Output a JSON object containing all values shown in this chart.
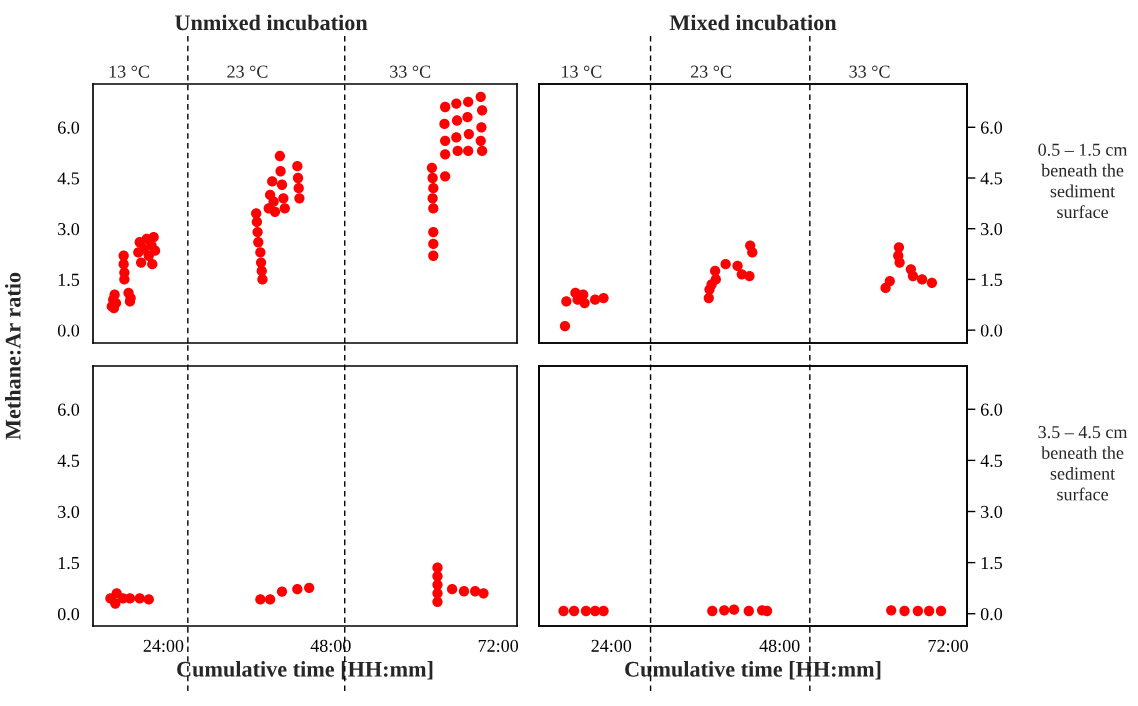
{
  "chart_data": [
    {
      "type": "scatter",
      "title": "Unmixed incubation",
      "ylabel": "Methane:Ar ratio",
      "annotations": [
        "13 °C",
        "23 °C",
        "33 °C"
      ],
      "xlim": [
        13.9,
        74.7
      ],
      "ylim": [
        -0.38,
        7.28
      ],
      "yticks": [
        {
          "value": 0,
          "label": "0.0"
        },
        {
          "value": 1.5,
          "label": "1.5"
        },
        {
          "value": 3,
          "label": "3.0"
        },
        {
          "value": 4.5,
          "label": "4.5"
        },
        {
          "value": 6,
          "label": "6.0"
        }
      ],
      "tick_labels": "y",
      "marker": "circle",
      "ref_lines": [
        {
          "axis": "x",
          "value": 27.5,
          "line_style": "dashed",
          "color": "#000000"
        },
        {
          "axis": "x",
          "value": 50.0,
          "line_style": "dashed",
          "color": "#000000"
        }
      ],
      "series": [
        {
          "color": "#ff0000",
          "x": [
            16.6,
            16.8,
            17.0,
            17.2,
            16.9,
            18.3,
            18.3,
            18.4,
            18.4,
            19.0,
            19.3,
            19.2,
            20.4,
            20.6,
            20.8,
            21.2,
            21.6,
            21.9,
            22.3,
            22.6,
            22.8,
            22.4,
            37.3,
            37.4,
            37.5,
            37.6,
            37.9,
            38.0,
            38.1,
            38.2,
            39.1,
            39.3,
            39.6,
            39.8,
            40.0,
            40.7,
            40.8,
            41.0,
            41.2,
            41.4,
            43.2,
            43.3,
            43.4,
            43.5,
            62.5,
            62.6,
            62.7,
            62.6,
            62.7,
            62.7,
            62.7,
            62.7,
            64.4,
            64.3,
            64.4,
            64.4,
            64.4,
            66.0,
            66.1,
            66.0,
            66.2,
            67.7,
            67.6,
            67.8,
            67.7,
            69.5,
            69.7,
            69.6,
            69.5,
            69.7
          ],
          "values": [
            0.7,
            0.9,
            1.05,
            0.8,
            0.65,
            2.2,
            1.95,
            1.7,
            1.5,
            1.1,
            0.95,
            0.85,
            2.3,
            2.6,
            2.0,
            2.4,
            2.7,
            2.2,
            2.5,
            2.75,
            2.35,
            1.95,
            3.45,
            3.2,
            2.9,
            2.6,
            2.3,
            2.0,
            1.75,
            1.5,
            3.6,
            4.0,
            4.4,
            3.8,
            3.5,
            5.15,
            4.7,
            4.3,
            3.9,
            3.6,
            4.85,
            4.5,
            4.2,
            3.9,
            4.8,
            4.5,
            4.2,
            3.9,
            3.6,
            2.9,
            2.55,
            2.2,
            6.6,
            6.1,
            5.6,
            5.2,
            4.55,
            6.7,
            6.2,
            5.7,
            5.3,
            6.75,
            6.3,
            5.8,
            5.3,
            6.9,
            6.5,
            6.0,
            5.6,
            5.3
          ]
        }
      ]
    },
    {
      "type": "scatter",
      "title": "Mixed incubation",
      "y2label": "0.5 – 1.5 cm\nbeneath the\nsediment\nsurface",
      "annotations": [
        "13 °C",
        "23 °C",
        "33 °C"
      ],
      "xlim": [
        13.7,
        74.7
      ],
      "y2lim": [
        -0.38,
        7.28
      ],
      "y2ticks": [
        {
          "value": 0,
          "label": "0.0"
        },
        {
          "value": 1.5,
          "label": "1.5"
        },
        {
          "value": 3,
          "label": "3.0"
        },
        {
          "value": 4.5,
          "label": "4.5"
        },
        {
          "value": 6,
          "label": "6.0"
        }
      ],
      "tick_labels": "y",
      "marker": "circle",
      "ref_lines": [
        {
          "axis": "x",
          "value": 29.6,
          "line_style": "dashed",
          "color": "#000000"
        },
        {
          "axis": "x",
          "value": 52.3,
          "line_style": "dashed",
          "color": "#000000"
        }
      ],
      "series": [
        {
          "color": "#ff0000",
          "axis": "y2",
          "x": [
            17.4,
            17.6,
            18.9,
            19.2,
            20.0,
            20.2,
            21.7,
            22.9,
            37.9,
            38.0,
            38.3,
            38.8,
            38.9,
            40.3,
            42.0,
            42.6,
            43.7,
            43.8,
            44.1,
            63.1,
            63.7,
            65.0,
            64.9,
            65.1,
            66.7,
            67.0,
            68.3,
            69.7
          ],
          "values": [
            0.12,
            0.85,
            1.1,
            0.9,
            1.05,
            0.8,
            0.9,
            0.95,
            0.95,
            1.2,
            1.35,
            1.75,
            1.5,
            1.95,
            1.9,
            1.65,
            1.6,
            2.5,
            2.3,
            1.25,
            1.45,
            2.45,
            2.2,
            2.0,
            1.8,
            1.6,
            1.5,
            1.4
          ]
        }
      ]
    },
    {
      "type": "scatter",
      "xlabel": "Cumulative time [HH:mm]",
      "xlim": [
        13.9,
        74.7
      ],
      "xticks": [
        {
          "value": 24,
          "label": "24:00"
        },
        {
          "value": 48,
          "label": "48:00"
        },
        {
          "value": 72,
          "label": "72:00"
        }
      ],
      "ylim": [
        -0.36,
        7.27
      ],
      "yticks": [
        {
          "value": 0,
          "label": "0.0"
        },
        {
          "value": 1.5,
          "label": "1.5"
        },
        {
          "value": 3,
          "label": "3.0"
        },
        {
          "value": 4.5,
          "label": "4.5"
        },
        {
          "value": 6,
          "label": "6.0"
        }
      ],
      "marker": "circle",
      "ref_lines": [
        {
          "axis": "x",
          "value": 27.5,
          "line_style": "dashed",
          "color": "#000000"
        },
        {
          "axis": "x",
          "value": 50.0,
          "line_style": "dashed",
          "color": "#000000"
        }
      ],
      "series": [
        {
          "color": "#ff0000",
          "x": [
            17.3,
            17.1,
            16.4,
            18.2,
            19.2,
            20.6,
            21.9,
            37.9,
            39.3,
            41.0,
            43.2,
            44.9,
            63.3,
            63.3,
            63.3,
            63.3,
            63.3,
            65.4,
            67.1,
            68.7,
            69.9
          ],
          "values": [
            0.6,
            0.3,
            0.45,
            0.45,
            0.45,
            0.45,
            0.42,
            0.42,
            0.42,
            0.65,
            0.72,
            0.76,
            1.35,
            1.1,
            0.85,
            0.6,
            0.35,
            0.72,
            0.66,
            0.66,
            0.6
          ]
        }
      ]
    },
    {
      "type": "scatter",
      "xlabel": "Cumulative time [HH:mm]",
      "y2label": "3.5 – 4.5 cm\nbeneath the\nsediment\nsurface",
      "xlim": [
        13.7,
        74.7
      ],
      "xticks": [
        {
          "value": 24,
          "label": "24:00"
        },
        {
          "value": 48,
          "label": "48:00"
        },
        {
          "value": 72,
          "label": "72:00"
        }
      ],
      "y2lim": [
        -0.36,
        7.27
      ],
      "y2ticks": [
        {
          "value": 0,
          "label": "0.0"
        },
        {
          "value": 1.5,
          "label": "1.5"
        },
        {
          "value": 3,
          "label": "3.0"
        },
        {
          "value": 4.5,
          "label": "4.5"
        },
        {
          "value": 6,
          "label": "6.0"
        }
      ],
      "marker": "circle",
      "ref_lines": [
        {
          "axis": "x",
          "value": 29.6,
          "line_style": "dashed",
          "color": "#000000"
        },
        {
          "axis": "x",
          "value": 52.3,
          "line_style": "dashed",
          "color": "#000000"
        }
      ],
      "series": [
        {
          "color": "#ff0000",
          "axis": "y2",
          "x": [
            17.2,
            18.7,
            20.4,
            21.7,
            22.9,
            38.4,
            40.1,
            41.5,
            43.6,
            45.5,
            46.2,
            63.9,
            65.8,
            67.7,
            69.3,
            71.0
          ],
          "values": [
            0.08,
            0.08,
            0.08,
            0.08,
            0.08,
            0.08,
            0.1,
            0.12,
            0.08,
            0.1,
            0.08,
            0.1,
            0.08,
            0.08,
            0.08,
            0.08
          ]
        }
      ]
    }
  ]
}
